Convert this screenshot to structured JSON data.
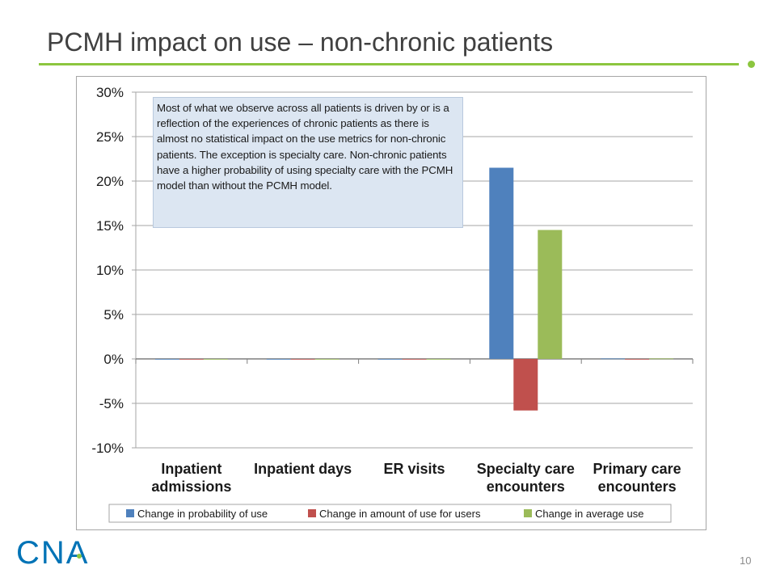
{
  "slide": {
    "title": "PCMH impact on use – non-chronic patients",
    "page_number": "10",
    "logo_text": "CNA",
    "note": "Most of what we observe across all patients is driven by or is a reflection of the experiences of chronic patients as there is almost no statistical impact on the use metrics for non-chronic patients. The exception is specialty care. Non-chronic patients have a higher probability of using specialty care with the PCMH model than without the PCMH model."
  },
  "colors": {
    "accent_green": "#8cc63f",
    "logo_blue": "#0073b6",
    "series_blue": "#4f81bd",
    "series_red": "#c0504d",
    "series_green": "#9bbb59"
  },
  "chart_data": {
    "type": "bar",
    "categories": [
      [
        "Inpatient",
        "admissions"
      ],
      [
        "Inpatient days"
      ],
      [
        "ER visits"
      ],
      [
        "Specialty care",
        "encounters"
      ],
      [
        "Primary care",
        "encounters"
      ]
    ],
    "series": [
      {
        "name": "Change in probability of use",
        "color": "#4f81bd",
        "values": [
          0,
          0,
          0,
          21.5,
          0.05
        ]
      },
      {
        "name": "Change in amount of use for users",
        "color": "#c0504d",
        "values": [
          0,
          0,
          0,
          -5.8,
          0
        ]
      },
      {
        "name": "Change in average use",
        "color": "#9bbb59",
        "values": [
          0,
          0,
          0,
          14.5,
          0.05
        ]
      }
    ],
    "ylim": [
      -10,
      30
    ],
    "yticks": [
      30,
      25,
      20,
      15,
      10,
      5,
      0,
      -5,
      -10
    ],
    "ytick_labels": [
      "30%",
      "25%",
      "20%",
      "15%",
      "10%",
      "5%",
      "0%",
      "-5%",
      "-10%"
    ],
    "grid": true,
    "legend_position": "bottom"
  }
}
